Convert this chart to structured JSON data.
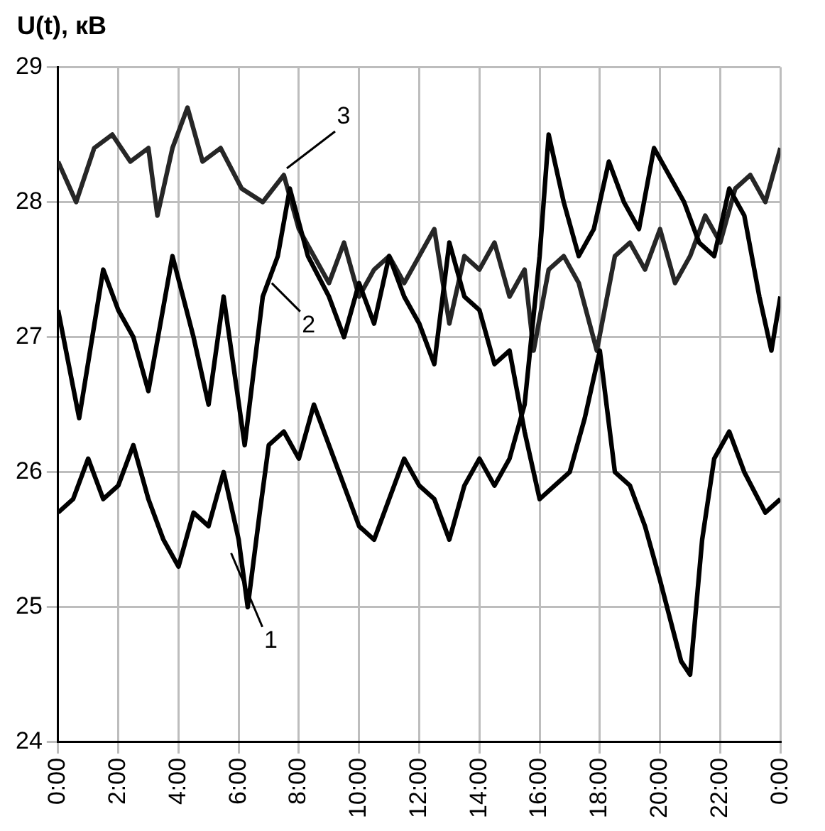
{
  "chart_data": {
    "type": "line",
    "ylabel": "U(t), кВ",
    "xlim": [
      0,
      24
    ],
    "xticks": [
      {
        "value": 0,
        "label": "0:00"
      },
      {
        "value": 2,
        "label": "2:00"
      },
      {
        "value": 4,
        "label": "4:00"
      },
      {
        "value": 6,
        "label": "6:00"
      },
      {
        "value": 8,
        "label": "8:00"
      },
      {
        "value": 10,
        "label": "10:00"
      },
      {
        "value": 12,
        "label": "12:00"
      },
      {
        "value": 14,
        "label": "14:00"
      },
      {
        "value": 16,
        "label": "16:00"
      },
      {
        "value": 18,
        "label": "18:00"
      },
      {
        "value": 20,
        "label": "20:00"
      },
      {
        "value": 22,
        "label": "22:00"
      },
      {
        "value": 24,
        "label": "0:00"
      }
    ],
    "ylim": [
      24,
      29
    ],
    "yticks": [
      24,
      25,
      26,
      27,
      28,
      29
    ],
    "grid": true,
    "legend": false,
    "marker": "none",
    "line_style": "solid",
    "series": [
      {
        "color": "#000000",
        "x": [
          0,
          0.5,
          1,
          1.5,
          2,
          2.5,
          3,
          3.5,
          4,
          4.5,
          5,
          5.5,
          6,
          6.3,
          6.7,
          7,
          7.5,
          8,
          8.5,
          9,
          9.5,
          10,
          10.5,
          11,
          11.5,
          12,
          12.5,
          13,
          13.5,
          14,
          14.5,
          15,
          15.5,
          16,
          16.3,
          16.8,
          17.3,
          17.8,
          18.3,
          18.8,
          19.3,
          19.8,
          20.3,
          20.8,
          21.3,
          21.8,
          22.3,
          22.8,
          23.3,
          23.7,
          24
        ],
        "values": [
          25.7,
          25.8,
          26.1,
          25.8,
          25.9,
          26.2,
          25.8,
          25.5,
          25.3,
          25.7,
          25.6,
          26.0,
          25.5,
          25.0,
          25.7,
          26.2,
          26.3,
          26.1,
          26.5,
          26.2,
          25.9,
          25.6,
          25.5,
          25.8,
          26.1,
          25.9,
          25.8,
          25.5,
          25.9,
          26.1,
          25.9,
          26.1,
          26.5,
          27.6,
          28.5,
          28.0,
          27.6,
          27.8,
          28.3,
          28.0,
          27.8,
          28.4,
          28.2,
          28.0,
          27.7,
          27.6,
          28.1,
          27.9,
          27.3,
          26.9,
          27.3
        ]
      },
      {
        "color": "#000000",
        "x": [
          0,
          0.7,
          1.5,
          2,
          2.5,
          3,
          3.8,
          4.5,
          5,
          5.5,
          6.2,
          6.8,
          7.3,
          7.7,
          8.3,
          9,
          9.5,
          10,
          10.5,
          11,
          11.5,
          12,
          12.5,
          13,
          13.5,
          14,
          14.5,
          15,
          15.5,
          16,
          16.5,
          17,
          17.5,
          18,
          18.5,
          19,
          19.5,
          20,
          20.7,
          21,
          21.4,
          21.8,
          22.3,
          22.8,
          23.5,
          24
        ],
        "values": [
          27.2,
          26.4,
          27.5,
          27.2,
          27.0,
          26.6,
          27.6,
          27.0,
          26.5,
          27.3,
          26.2,
          27.3,
          27.6,
          28.1,
          27.6,
          27.3,
          27.0,
          27.4,
          27.1,
          27.6,
          27.3,
          27.1,
          26.8,
          27.7,
          27.3,
          27.2,
          26.8,
          26.9,
          26.3,
          25.8,
          25.9,
          26.0,
          26.4,
          26.9,
          26.0,
          25.9,
          25.6,
          25.2,
          24.6,
          24.5,
          25.5,
          26.1,
          26.3,
          26.0,
          25.7,
          25.8
        ]
      },
      {
        "color": "#262626",
        "x": [
          0,
          0.6,
          1.2,
          1.8,
          2.4,
          3,
          3.3,
          3.8,
          4.3,
          4.8,
          5.4,
          6.1,
          6.8,
          7.5,
          8,
          8.5,
          9,
          9.5,
          10,
          10.5,
          11,
          11.5,
          12,
          12.5,
          13,
          13.5,
          14,
          14.5,
          15,
          15.5,
          15.8,
          16.3,
          16.8,
          17.3,
          17.9,
          18.5,
          19,
          19.5,
          20,
          20.5,
          21,
          21.5,
          22,
          22.5,
          23,
          23.5,
          24
        ],
        "values": [
          28.3,
          28.0,
          28.4,
          28.5,
          28.3,
          28.4,
          27.9,
          28.4,
          28.7,
          28.3,
          28.4,
          28.1,
          28.0,
          28.2,
          27.8,
          27.6,
          27.4,
          27.7,
          27.3,
          27.5,
          27.6,
          27.4,
          27.6,
          27.8,
          27.1,
          27.6,
          27.5,
          27.7,
          27.3,
          27.5,
          26.9,
          27.5,
          27.6,
          27.4,
          26.9,
          27.6,
          27.7,
          27.5,
          27.8,
          27.4,
          27.6,
          27.9,
          27.7,
          28.1,
          28.2,
          28.0,
          28.4
        ]
      }
    ],
    "annotations": [
      {
        "text": "1",
        "x": 5.75,
        "y": 25.4
      },
      {
        "text": "2",
        "x": 7.1,
        "y": 27.4
      },
      {
        "text": "3",
        "x": 7.6,
        "y": 28.25
      }
    ]
  }
}
